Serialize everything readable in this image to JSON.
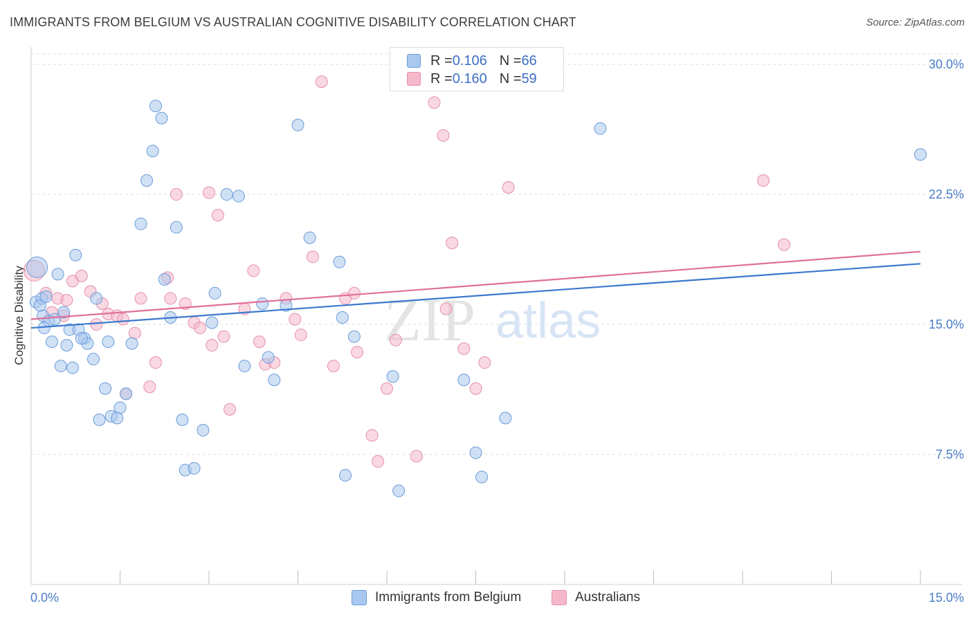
{
  "title": "IMMIGRANTS FROM BELGIUM VS AUSTRALIAN COGNITIVE DISABILITY CORRELATION CHART",
  "source": "Source: ZipAtlas.com",
  "colors": {
    "blue_fill": "#a9c8ef",
    "blue_stroke": "#6b9bd8",
    "blue_line": "#3a78cf",
    "pink_fill": "#f5b8cb",
    "pink_stroke": "#e490ab",
    "pink_line": "#e06f9a",
    "grid": "#dddddd",
    "tick_text": "#4a7cc9"
  },
  "legend": {
    "rows": [
      {
        "r_label": "R = ",
        "r_value": "0.106",
        "n_label": "N = ",
        "n_value": "66"
      },
      {
        "r_label": "R = ",
        "r_value": "0.160",
        "n_label": "N = ",
        "n_value": "59"
      }
    ]
  },
  "bottom_legend": [
    "Immigrants from Belgium",
    "Australians"
  ],
  "watermark": {
    "part1": "ZIP",
    "part2": "atlas"
  },
  "chart_data": {
    "type": "scatter",
    "xlabel": "",
    "ylabel": "Cognitive Disability",
    "xlim": [
      0,
      15
    ],
    "ylim": [
      0,
      31
    ],
    "x_tick_labels": [
      {
        "value": 0,
        "label": "0.0%"
      },
      {
        "value": 15,
        "label": "15.0%"
      }
    ],
    "y_tick_labels": [
      {
        "value": 7.5,
        "label": "7.5%"
      },
      {
        "value": 15,
        "label": "15.0%"
      },
      {
        "value": 22.5,
        "label": "22.5%"
      },
      {
        "value": 30,
        "label": "30.0%"
      }
    ],
    "x_minor_ticks": [
      1.5,
      3,
      4.5,
      6,
      7.5,
      9,
      10.5,
      12,
      13.5,
      15
    ],
    "grid": true,
    "series": [
      {
        "name": "Immigrants from Belgium",
        "color": "#a9c8ef",
        "trend": {
          "x": [
            0,
            15
          ],
          "y": [
            14.8,
            18.5
          ]
        },
        "points": [
          [
            0.1,
            18.3
          ],
          [
            0.08,
            16.3
          ],
          [
            0.18,
            16.5
          ],
          [
            0.2,
            15.5
          ],
          [
            0.3,
            15.2
          ],
          [
            0.22,
            14.8
          ],
          [
            0.45,
            17.9
          ],
          [
            0.55,
            15.7
          ],
          [
            0.6,
            13.8
          ],
          [
            0.75,
            19.0
          ],
          [
            0.9,
            14.2
          ],
          [
            0.95,
            13.9
          ],
          [
            0.35,
            14.0
          ],
          [
            0.5,
            12.6
          ],
          [
            0.7,
            12.5
          ],
          [
            0.65,
            14.7
          ],
          [
            0.8,
            14.7
          ],
          [
            1.05,
            13.0
          ],
          [
            1.1,
            16.5
          ],
          [
            1.25,
            11.3
          ],
          [
            1.35,
            9.7
          ],
          [
            1.45,
            9.6
          ],
          [
            1.5,
            10.2
          ],
          [
            1.6,
            11.0
          ],
          [
            1.3,
            14.0
          ],
          [
            1.7,
            13.9
          ],
          [
            1.85,
            20.8
          ],
          [
            1.95,
            23.3
          ],
          [
            2.05,
            25.0
          ],
          [
            2.1,
            27.6
          ],
          [
            2.2,
            26.9
          ],
          [
            2.25,
            17.6
          ],
          [
            2.35,
            15.4
          ],
          [
            2.45,
            20.6
          ],
          [
            2.55,
            9.5
          ],
          [
            2.6,
            6.6
          ],
          [
            2.75,
            6.7
          ],
          [
            2.9,
            8.9
          ],
          [
            3.05,
            15.1
          ],
          [
            3.1,
            16.8
          ],
          [
            3.3,
            22.5
          ],
          [
            3.5,
            22.4
          ],
          [
            3.6,
            12.6
          ],
          [
            3.9,
            16.2
          ],
          [
            4.0,
            13.1
          ],
          [
            4.1,
            11.8
          ],
          [
            4.3,
            16.1
          ],
          [
            4.5,
            26.5
          ],
          [
            4.7,
            20.0
          ],
          [
            5.2,
            18.6
          ],
          [
            5.25,
            15.4
          ],
          [
            5.3,
            6.3
          ],
          [
            5.45,
            14.3
          ],
          [
            6.1,
            12.0
          ],
          [
            6.2,
            5.4
          ],
          [
            7.3,
            11.8
          ],
          [
            7.5,
            7.6
          ],
          [
            7.6,
            6.2
          ],
          [
            8.0,
            9.6
          ],
          [
            9.6,
            26.3
          ],
          [
            15.0,
            24.8
          ],
          [
            0.15,
            16.1
          ],
          [
            0.4,
            15.3
          ],
          [
            0.85,
            14.2
          ],
          [
            1.15,
            9.5
          ],
          [
            0.25,
            16.6
          ]
        ]
      },
      {
        "name": "Australians",
        "color": "#f5b8cb",
        "trend": {
          "x": [
            0,
            15
          ],
          "y": [
            15.3,
            19.2
          ]
        },
        "points": [
          [
            0.05,
            18.1
          ],
          [
            0.25,
            16.8
          ],
          [
            0.35,
            15.7
          ],
          [
            0.45,
            16.5
          ],
          [
            0.55,
            15.5
          ],
          [
            0.7,
            17.5
          ],
          [
            0.85,
            17.8
          ],
          [
            1.0,
            16.9
          ],
          [
            1.1,
            15.0
          ],
          [
            1.2,
            16.2
          ],
          [
            1.3,
            15.6
          ],
          [
            1.45,
            15.5
          ],
          [
            1.55,
            15.3
          ],
          [
            1.6,
            11.0
          ],
          [
            1.75,
            14.5
          ],
          [
            1.85,
            16.5
          ],
          [
            2.0,
            11.4
          ],
          [
            2.1,
            12.8
          ],
          [
            2.3,
            17.7
          ],
          [
            2.35,
            16.5
          ],
          [
            2.45,
            22.5
          ],
          [
            2.6,
            16.2
          ],
          [
            2.75,
            15.1
          ],
          [
            2.85,
            14.8
          ],
          [
            3.0,
            22.6
          ],
          [
            3.05,
            13.8
          ],
          [
            3.15,
            21.3
          ],
          [
            3.25,
            14.3
          ],
          [
            3.35,
            10.1
          ],
          [
            3.6,
            15.9
          ],
          [
            3.75,
            18.1
          ],
          [
            3.85,
            14.0
          ],
          [
            3.95,
            12.7
          ],
          [
            4.1,
            12.8
          ],
          [
            4.3,
            16.5
          ],
          [
            4.45,
            15.3
          ],
          [
            4.55,
            14.4
          ],
          [
            4.75,
            18.9
          ],
          [
            4.9,
            29.0
          ],
          [
            5.1,
            12.6
          ],
          [
            5.3,
            16.5
          ],
          [
            5.45,
            16.8
          ],
          [
            5.5,
            13.4
          ],
          [
            5.75,
            8.6
          ],
          [
            5.85,
            7.1
          ],
          [
            6.0,
            11.3
          ],
          [
            6.15,
            14.1
          ],
          [
            6.5,
            7.4
          ],
          [
            6.8,
            27.8
          ],
          [
            6.95,
            25.9
          ],
          [
            7.0,
            15.9
          ],
          [
            7.1,
            19.7
          ],
          [
            7.3,
            13.6
          ],
          [
            7.5,
            11.3
          ],
          [
            7.65,
            12.8
          ],
          [
            8.05,
            22.9
          ],
          [
            12.35,
            23.3
          ],
          [
            12.7,
            19.6
          ],
          [
            0.6,
            16.4
          ]
        ]
      }
    ]
  }
}
